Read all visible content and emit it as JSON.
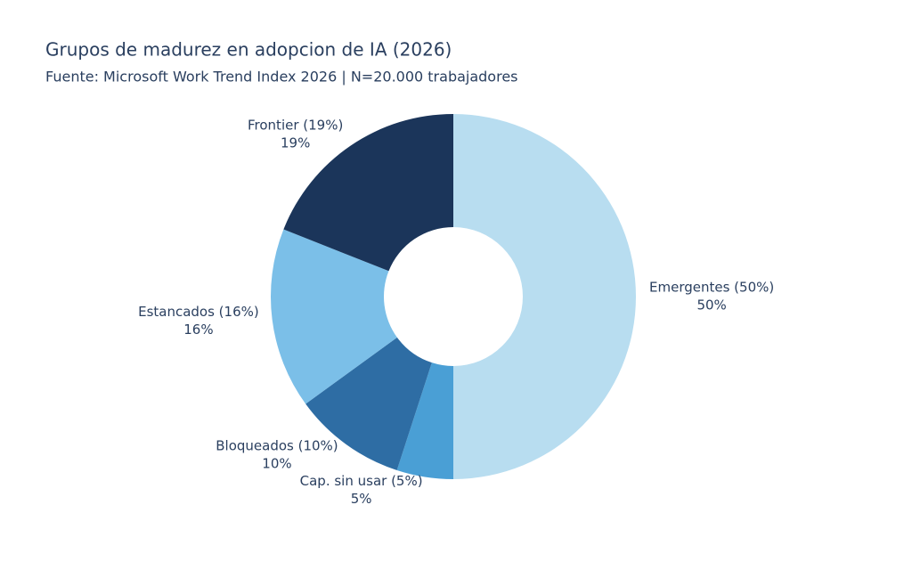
{
  "chart_data": {
    "type": "donut",
    "title": "Grupos de madurez en adopcion de IA (2026)",
    "subtitle": "Fuente: Microsoft Work Trend Index 2026 | N=20.000 trabajadores",
    "categories": [
      "Emergentes (50%)",
      "Cap. sin usar (5%)",
      "Bloqueados (10%)",
      "Estancados (16%)",
      "Frontier (19%)"
    ],
    "values": [
      50,
      5,
      10,
      16,
      19
    ],
    "value_labels": [
      "50%",
      "5%",
      "10%",
      "16%",
      "19%"
    ],
    "colors": [
      "#b8ddf0",
      "#4a9fd5",
      "#2e6da4",
      "#7bbfe8",
      "#1b355a"
    ]
  }
}
